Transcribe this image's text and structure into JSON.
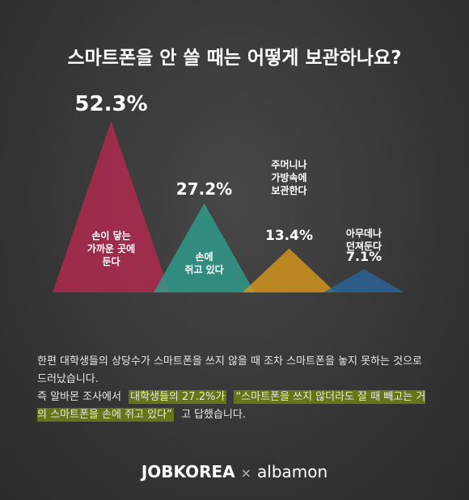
{
  "chart_data": {
    "type": "triangle",
    "title": "스마트폰을 안 쓸 때는 어떻게 보관하나요?",
    "categories": [
      "손이 닿는\n가까운 곳에\n둔다",
      "손에\n쥐고 있다",
      "주머니나\n가방속에\n보관한다",
      "아무데나\n던져둔다"
    ],
    "values": [
      52.3,
      27.2,
      13.4,
      7.1
    ],
    "value_labels": [
      "52.3%",
      "27.2%",
      "13.4%",
      "7.1%"
    ],
    "colors": [
      "#b3294f",
      "#2e9e8e",
      "#d4961c",
      "#2a6499"
    ]
  },
  "body": {
    "paragraphs": [
      [
        {
          "text": "한편 대학생들의 상당수가 스마트폰을 쓰지 않을 때 조차 스마트폰을 놓지 못하는 것으로 드러났습니다.",
          "highlight": false
        }
      ],
      [
        {
          "text": "즉 알바몬 조사에서",
          "highlight": false
        },
        {
          "text": "대학생들의 27.2%가",
          "highlight": true
        },
        {
          "text": "“스마트폰을 쓰지 않더라도 잘 때 빼고는 거의 스마트폰을 손에 쥐고 있다”",
          "highlight": true
        },
        {
          "text": "고 답했습니다.",
          "highlight": false
        }
      ]
    ]
  },
  "footer": {
    "brand_1": "JOBKOREA",
    "separator": "×",
    "brand_2": "albamon"
  }
}
